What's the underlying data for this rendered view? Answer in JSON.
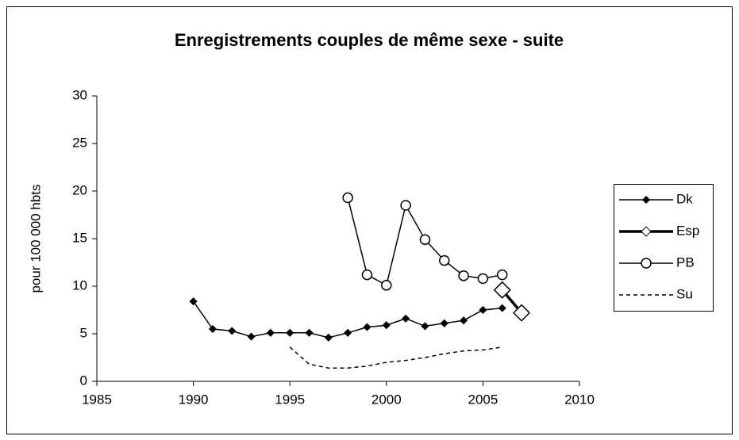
{
  "chart_data": {
    "type": "line",
    "title": "Enregistrements couples de même sexe - suite",
    "ylabel": "pour 100 000 hbts",
    "xlim": [
      1985,
      2010
    ],
    "xticks": [
      1985,
      1990,
      1995,
      2000,
      2005,
      2010
    ],
    "ylim": [
      0,
      30
    ],
    "yticks": [
      0,
      5,
      10,
      15,
      20,
      25,
      30
    ],
    "grid": false,
    "legend": "right",
    "series": [
      {
        "name": "Dk",
        "color": "#000000",
        "marker": "diamond-filled",
        "line_width": 1.5,
        "dash": "solid",
        "x": [
          1990,
          1991,
          1992,
          1993,
          1994,
          1995,
          1996,
          1997,
          1998,
          1999,
          2000,
          2001,
          2002,
          2003,
          2004,
          2005,
          2006
        ],
        "values": [
          8.4,
          5.5,
          5.3,
          4.7,
          5.1,
          5.1,
          5.1,
          4.6,
          5.1,
          5.7,
          5.9,
          6.6,
          5.8,
          6.1,
          6.4,
          7.5,
          7.7
        ]
      },
      {
        "name": "Esp",
        "color": "#000000",
        "marker": "diamond-open",
        "line_width": 3.5,
        "dash": "solid",
        "x": [
          2006,
          2007
        ],
        "values": [
          9.6,
          7.2
        ]
      },
      {
        "name": "PB",
        "color": "#000000",
        "marker": "circle-open",
        "line_width": 1.5,
        "dash": "solid",
        "x": [
          1998,
          1999,
          2000,
          2001,
          2002,
          2003,
          2004,
          2005,
          2006
        ],
        "values": [
          19.3,
          11.2,
          10.1,
          18.5,
          14.9,
          12.7,
          11.1,
          10.8,
          11.2
        ]
      },
      {
        "name": "Su",
        "color": "#000000",
        "marker": "none",
        "line_width": 1.5,
        "dash": "dashed",
        "x": [
          1995,
          1996,
          1997,
          1998,
          1999,
          2000,
          2001,
          2002,
          2003,
          2004,
          2005,
          2006
        ],
        "values": [
          3.6,
          1.8,
          1.4,
          1.4,
          1.6,
          2.0,
          2.2,
          2.5,
          2.9,
          3.2,
          3.3,
          3.6
        ]
      }
    ]
  }
}
